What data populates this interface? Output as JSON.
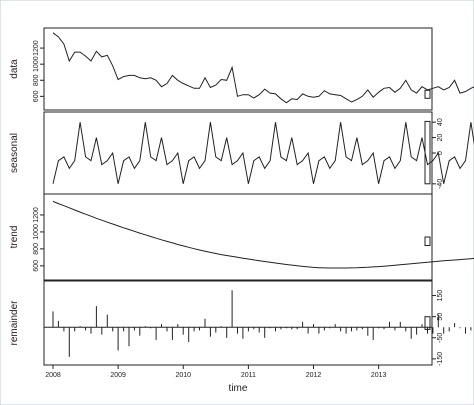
{
  "chart_data": {
    "type": "line",
    "xlabel": "time",
    "x_ticks": [
      "2008",
      "2009",
      "2010",
      "2011",
      "2012",
      "2013"
    ],
    "xlim": [
      2008.0,
      2013.62
    ],
    "start": 2008.0,
    "frequency": 12,
    "panels": [
      {
        "name": "data",
        "style": "line",
        "ylim": [
          480,
          1400
        ],
        "yticks": [
          {
            "value": 600,
            "label": "600"
          },
          {
            "value": 800,
            "label": "800"
          },
          {
            "value": 1000,
            "label": "1000"
          },
          {
            "value": 1200,
            "label": "1200"
          }
        ],
        "ticks_side": "left",
        "range_bar": [
          575,
          675
        ],
        "values": [
          1390,
          1340,
          1250,
          1040,
          1150,
          1150,
          1100,
          1040,
          1160,
          1090,
          1110,
          980,
          810,
          845,
          860,
          860,
          830,
          820,
          830,
          800,
          720,
          760,
          860,
          800,
          760,
          730,
          700,
          700,
          830,
          710,
          740,
          810,
          800,
          960,
          600,
          620,
          620,
          580,
          620,
          690,
          640,
          630,
          570,
          520,
          570,
          560,
          630,
          600,
          590,
          600,
          670,
          630,
          620,
          610,
          570,
          530,
          560,
          600,
          680,
          590,
          650,
          700,
          710,
          650,
          700,
          800,
          680,
          640,
          720,
          680,
          700,
          720,
          680,
          710,
          800,
          640,
          660,
          700,
          730
        ]
      },
      {
        "name": "seasonal",
        "style": "line",
        "ylim": [
          -48,
          48
        ],
        "yticks": [
          {
            "value": -40,
            "label": "-40"
          },
          {
            "value": 0,
            "label": "0"
          },
          {
            "value": 20,
            "label": "20"
          },
          {
            "value": 40,
            "label": "40"
          }
        ],
        "ticks_side": "right",
        "range_bar": [
          -40,
          41
        ],
        "pattern": [
          -40,
          -10,
          -5,
          -20,
          -10,
          40,
          -5,
          -10,
          20,
          -15,
          -10,
          0
        ],
        "values": [
          -40,
          -10,
          -5,
          -20,
          -10,
          40,
          -5,
          -10,
          20,
          -15,
          -10,
          0,
          -40,
          -10,
          -5,
          -20,
          -10,
          40,
          -5,
          -10,
          20,
          -15,
          -10,
          0,
          -40,
          -10,
          -5,
          -20,
          -10,
          40,
          -5,
          -10,
          20,
          -15,
          -10,
          0,
          -40,
          -10,
          -5,
          -20,
          -10,
          40,
          -5,
          -10,
          20,
          -15,
          -10,
          0,
          -40,
          -10,
          -5,
          -20,
          -10,
          40,
          -5,
          -10,
          20,
          -15,
          -10,
          0,
          -40,
          -10,
          -5,
          -20,
          -10,
          40,
          -5,
          -10,
          20,
          -15,
          -10,
          0,
          -40,
          -10,
          -5,
          -20,
          -10,
          40,
          -5
        ]
      },
      {
        "name": "trend",
        "style": "line",
        "ylim": [
          480,
          1400
        ],
        "yticks": [
          {
            "value": 600,
            "label": "600"
          },
          {
            "value": 800,
            "label": "800"
          },
          {
            "value": 1000,
            "label": "1000"
          },
          {
            "value": 1200,
            "label": "1200"
          }
        ],
        "ticks_side": "left",
        "range_bar": [
          840,
          940
        ],
        "values": [
          1360,
          1334,
          1309,
          1284,
          1259,
          1234,
          1209,
          1185,
          1161,
          1138,
          1115,
          1093,
          1071,
          1049,
          1028,
          1007,
          986,
          966,
          946,
          926,
          907,
          888,
          870,
          852,
          835,
          818,
          802,
          787,
          772,
          758,
          745,
          733,
          722,
          711,
          700,
          690,
          680,
          670,
          660,
          651,
          642,
          633,
          624,
          616,
          608,
          600,
          593,
          587,
          582,
          578,
          575,
          574,
          574,
          574,
          574,
          575,
          577,
          580,
          583,
          587,
          591,
          596,
          601,
          606,
          612,
          618,
          624,
          630,
          636,
          642,
          648,
          654,
          659,
          664,
          669,
          674,
          679,
          684,
          690
        ]
      },
      {
        "name": "remainder",
        "style": "bars",
        "ylim": [
          -160,
          200
        ],
        "yticks": [
          {
            "value": -150,
            "label": "-150"
          },
          {
            "value": -50,
            "label": "-50"
          },
          {
            "value": 50,
            "label": "50"
          },
          {
            "value": 150,
            "label": "150"
          }
        ],
        "ticks_side": "right",
        "range_bar": [
          -10,
          50
        ],
        "values": [
          75,
          30,
          -20,
          -140,
          -20,
          5,
          -15,
          -30,
          100,
          -35,
          60,
          -20,
          -110,
          -20,
          -90,
          -15,
          -40,
          5,
          -5,
          -60,
          15,
          -20,
          -60,
          15,
          -35,
          -70,
          -20,
          -15,
          40,
          -45,
          -25,
          5,
          -50,
          175,
          -30,
          -55,
          -20,
          -10,
          -25,
          -50,
          -5,
          -20,
          -10,
          -5,
          -10,
          -10,
          25,
          -30,
          15,
          -30,
          -15,
          -5,
          15,
          -20,
          -30,
          -20,
          -15,
          -10,
          -40,
          -60,
          -5,
          -10,
          25,
          -15,
          25,
          -20,
          -55,
          -35,
          15,
          -30,
          -30,
          60,
          -30,
          -20,
          20,
          -5,
          -30,
          -15,
          -10
        ]
      }
    ]
  }
}
